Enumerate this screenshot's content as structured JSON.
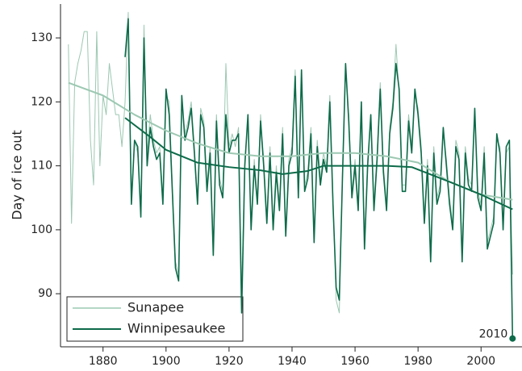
{
  "chart_data": {
    "type": "line",
    "y_label": "Day of ice out",
    "xlim": [
      1866.5,
      2013
    ],
    "ylim": [
      81.7,
      135.3
    ],
    "xticks": [
      1880,
      1900,
      1920,
      1940,
      1960,
      1980,
      2000
    ],
    "yticks": [
      90,
      100,
      110,
      120,
      130
    ],
    "legend": "lower left",
    "series": [
      {
        "name": "Sunapee",
        "color": "#9cc8b2",
        "width": 1,
        "x": [
          1869,
          1870,
          1871,
          1872,
          1873,
          1874,
          1875,
          1876,
          1877,
          1878,
          1879,
          1880,
          1881,
          1882,
          1883,
          1884,
          1885,
          1886,
          1887,
          1888,
          1889,
          1890,
          1891,
          1892,
          1893,
          1894,
          1895,
          1896,
          1897,
          1898,
          1899,
          1900,
          1901,
          1902,
          1903,
          1904,
          1905,
          1906,
          1907,
          1908,
          1909,
          1910,
          1911,
          1912,
          1913,
          1914,
          1915,
          1916,
          1917,
          1918,
          1919,
          1920,
          1921,
          1922,
          1923,
          1924,
          1925,
          1926,
          1927,
          1928,
          1929,
          1930,
          1931,
          1932,
          1933,
          1934,
          1935,
          1936,
          1937,
          1938,
          1939,
          1940,
          1941,
          1942,
          1943,
          1944,
          1945,
          1946,
          1947,
          1948,
          1949,
          1950,
          1951,
          1952,
          1953,
          1954,
          1955,
          1956,
          1957,
          1958,
          1959,
          1960,
          1961,
          1962,
          1963,
          1964,
          1965,
          1966,
          1967,
          1968,
          1969,
          1970,
          1971,
          1972,
          1973,
          1974,
          1975,
          1976,
          1977,
          1978,
          1979,
          1980,
          1981,
          1982,
          1983,
          1984,
          1985,
          1986,
          1987,
          1988,
          1989,
          1990,
          1991,
          1992,
          1993,
          1994,
          1995,
          1996,
          1997,
          1998,
          1999,
          2000,
          2001,
          2002,
          2003,
          2004,
          2005,
          2006,
          2007,
          2008,
          2009,
          2010
        ],
        "values": [
          129,
          101,
          123,
          126,
          128,
          131,
          131,
          114,
          107,
          131,
          110,
          121,
          118,
          126,
          122,
          118,
          118,
          113,
          120,
          134,
          105,
          114,
          112,
          103,
          132,
          112,
          118,
          114,
          112,
          113,
          105,
          121,
          120,
          107,
          95,
          93,
          120,
          115,
          117,
          120,
          113,
          105,
          119,
          117,
          107,
          113,
          97,
          118,
          108,
          106,
          126,
          113,
          115,
          113,
          116,
          90,
          111,
          117,
          101,
          111,
          105,
          118,
          111,
          102,
          113,
          101,
          110,
          104,
          116,
          100,
          111,
          113,
          125,
          106,
          124,
          107,
          109,
          116,
          99,
          114,
          108,
          112,
          110,
          121,
          105,
          89,
          87,
          109,
          125,
          118,
          106,
          111,
          104,
          119,
          98,
          111,
          117,
          104,
          112,
          123,
          110,
          104,
          116,
          120,
          129,
          121,
          107,
          107,
          118,
          113,
          121,
          119,
          113,
          102,
          111,
          96,
          113,
          105,
          107,
          115,
          111,
          105,
          101,
          114,
          112,
          96,
          113,
          108,
          107,
          118,
          106,
          104,
          113,
          98,
          100,
          102,
          114,
          113,
          101,
          112,
          113,
          93
        ]
      },
      {
        "name": "Winnipesaukee",
        "color": "#0d6b4a",
        "width": 1.6,
        "x": [
          1887,
          1888,
          1889,
          1890,
          1891,
          1892,
          1893,
          1894,
          1895,
          1896,
          1897,
          1898,
          1899,
          1900,
          1901,
          1902,
          1903,
          1904,
          1905,
          1906,
          1907,
          1908,
          1909,
          1910,
          1911,
          1912,
          1913,
          1914,
          1915,
          1916,
          1917,
          1918,
          1919,
          1920,
          1921,
          1922,
          1923,
          1924,
          1925,
          1926,
          1927,
          1928,
          1929,
          1930,
          1931,
          1932,
          1933,
          1934,
          1935,
          1936,
          1937,
          1938,
          1939,
          1940,
          1941,
          1942,
          1943,
          1944,
          1945,
          1946,
          1947,
          1948,
          1949,
          1950,
          1951,
          1952,
          1953,
          1954,
          1955,
          1956,
          1957,
          1958,
          1959,
          1960,
          1961,
          1962,
          1963,
          1964,
          1965,
          1966,
          1967,
          1968,
          1969,
          1970,
          1971,
          1972,
          1973,
          1974,
          1975,
          1976,
          1977,
          1978,
          1979,
          1980,
          1981,
          1982,
          1983,
          1984,
          1985,
          1986,
          1987,
          1988,
          1989,
          1990,
          1991,
          1992,
          1993,
          1994,
          1995,
          1996,
          1997,
          1998,
          1999,
          2000,
          2001,
          2002,
          2003,
          2004,
          2005,
          2006,
          2007,
          2008,
          2009,
          2010
        ],
        "values": [
          127,
          133,
          104,
          114,
          113,
          102,
          130,
          110,
          116,
          113,
          111,
          112,
          104,
          122,
          118,
          106,
          94,
          92,
          121,
          114,
          116,
          119,
          112,
          104,
          118,
          116,
          106,
          112,
          96,
          117,
          107,
          105,
          118,
          112,
          114,
          114,
          115,
          87,
          110,
          118,
          100,
          110,
          104,
          117,
          110,
          101,
          112,
          100,
          109,
          103,
          115,
          99,
          110,
          112,
          124,
          105,
          125,
          106,
          108,
          115,
          98,
          113,
          107,
          111,
          109,
          120,
          104,
          91,
          89,
          108,
          126,
          117,
          105,
          110,
          103,
          120,
          97,
          110,
          118,
          103,
          111,
          122,
          109,
          103,
          115,
          119,
          126,
          122,
          106,
          106,
          117,
          112,
          122,
          118,
          112,
          101,
          110,
          95,
          112,
          104,
          106,
          116,
          110,
          104,
          100,
          113,
          111,
          95,
          112,
          107,
          106,
          119,
          105,
          103,
          112,
          97,
          99,
          101,
          115,
          112,
          100,
          113,
          114,
          83
        ]
      },
      {
        "color": "#9cc8b2",
        "width": 2,
        "x": [
          1869,
          1880,
          1890,
          1900,
          1910,
          1920,
          1930,
          1940,
          1950,
          1960,
          1970,
          1980,
          1990,
          2000,
          2010
        ],
        "values": [
          123,
          121,
          118,
          115.5,
          113.5,
          112,
          111.5,
          111.5,
          112,
          112,
          111.5,
          110.5,
          107.5,
          105.5,
          104.7
        ]
      },
      {
        "color": "#0d6b4a",
        "width": 2,
        "x": [
          1887,
          1895,
          1900,
          1910,
          1920,
          1930,
          1937,
          1945,
          1950,
          1960,
          1970,
          1978,
          1990,
          2000,
          2010
        ],
        "values": [
          117.5,
          114.5,
          112.5,
          110.5,
          109.8,
          109.3,
          108.7,
          109.2,
          110,
          110,
          110,
          109.8,
          107.5,
          105.5,
          103.2
        ]
      }
    ],
    "annotation": {
      "text": "2010",
      "x": 2010,
      "y": 83,
      "color": "#0d6b4a"
    }
  }
}
